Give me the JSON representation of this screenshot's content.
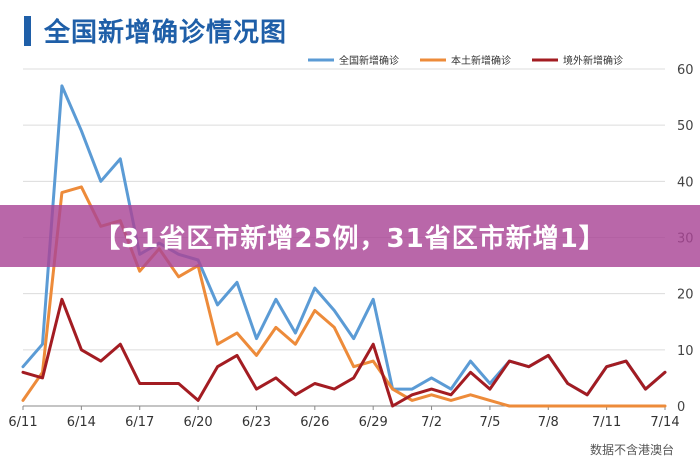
{
  "title": "全国新增确诊情况图",
  "source": "数据不含港澳台",
  "banner": "【31省区市新增25例，31省区市新增1】",
  "chart_data": {
    "type": "line",
    "title": "全国新增确诊情况图",
    "xlabel": "",
    "ylabel": "",
    "ylim": [
      0,
      60
    ],
    "y_ticks": [
      0,
      10,
      20,
      30,
      40,
      50,
      60
    ],
    "y_axis_side": "right",
    "grid": true,
    "legend_position": "top-right",
    "x_tick_labels": [
      "6/11",
      "6/14",
      "6/17",
      "6/20",
      "6/23",
      "6/26",
      "6/29",
      "7/2",
      "7/5",
      "7/8",
      "7/11",
      "7/14"
    ],
    "x": [
      "6/11",
      "6/12",
      "6/13",
      "6/14",
      "6/15",
      "6/16",
      "6/17",
      "6/18",
      "6/19",
      "6/20",
      "6/21",
      "6/22",
      "6/23",
      "6/24",
      "6/25",
      "6/26",
      "6/27",
      "6/28",
      "6/29",
      "6/30",
      "7/1",
      "7/2",
      "7/3",
      "7/4",
      "7/5",
      "7/6",
      "7/7",
      "7/8",
      "7/9",
      "7/10",
      "7/11",
      "7/12",
      "7/13",
      "7/14"
    ],
    "series": [
      {
        "name": "全国新增确诊",
        "color": "#5b9bd5",
        "values": [
          7,
          11,
          57,
          49,
          40,
          44,
          27,
          29,
          27,
          26,
          18,
          22,
          12,
          19,
          13,
          21,
          17,
          12,
          19,
          3,
          3,
          5,
          3,
          8,
          4,
          8,
          7,
          9,
          4,
          2,
          7,
          8,
          3,
          6
        ]
      },
      {
        "name": "本土新增确诊",
        "color": "#ed8b3a",
        "values": [
          1,
          6,
          38,
          39,
          32,
          33,
          24,
          28,
          23,
          25,
          11,
          13,
          9,
          14,
          11,
          17,
          14,
          7,
          8,
          3,
          1,
          2,
          1,
          2,
          1,
          0,
          0,
          0,
          0,
          0,
          0,
          0,
          0,
          0
        ]
      },
      {
        "name": "境外新增确诊",
        "color": "#a31c22",
        "values": [
          6,
          5,
          19,
          10,
          8,
          11,
          4,
          4,
          4,
          1,
          7,
          9,
          3,
          5,
          2,
          4,
          3,
          5,
          11,
          0,
          2,
          3,
          2,
          6,
          3,
          8,
          7,
          9,
          4,
          2,
          7,
          8,
          3,
          6
        ]
      }
    ]
  }
}
